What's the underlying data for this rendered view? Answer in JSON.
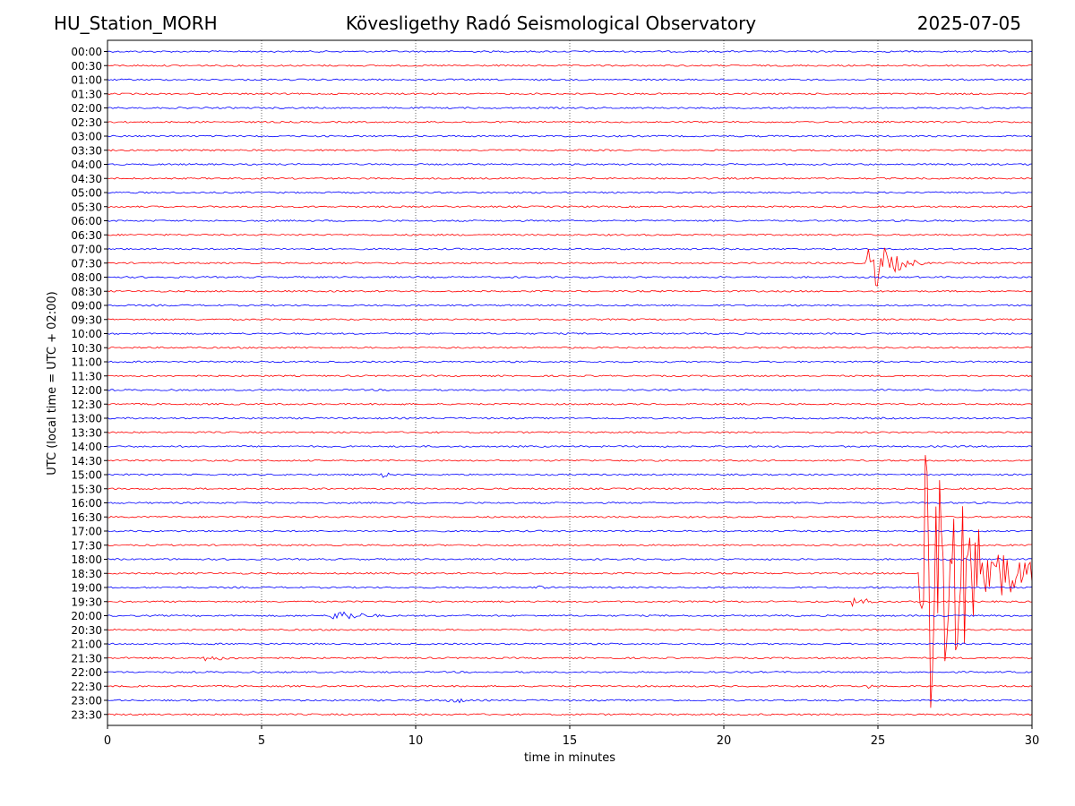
{
  "header": {
    "station": "HU_Station_MORH",
    "observatory": "Kövesligethy Radó Seismological Observatory",
    "date": "2025-07-05"
  },
  "chart_data": {
    "type": "line",
    "title": "Kövesligethy Radó Seismological Observatory",
    "xlabel": "time in minutes",
    "ylabel": "UTC (local time = UTC + 02:00)",
    "xlim": [
      0,
      30
    ],
    "xticks": [
      "0",
      "5",
      "10",
      "15",
      "20",
      "25",
      "30"
    ],
    "grid": "vertical dotted",
    "colors": {
      "even": "#0000ff",
      "odd": "#ff0000"
    },
    "rows": [
      "00:00",
      "00:30",
      "01:00",
      "01:30",
      "02:00",
      "02:30",
      "03:00",
      "03:30",
      "04:00",
      "04:30",
      "05:00",
      "05:30",
      "06:00",
      "06:30",
      "07:00",
      "07:30",
      "08:00",
      "08:30",
      "09:00",
      "09:30",
      "10:00",
      "10:30",
      "11:00",
      "11:30",
      "12:00",
      "12:30",
      "13:00",
      "13:30",
      "14:00",
      "14:30",
      "15:00",
      "15:30",
      "16:00",
      "16:30",
      "17:00",
      "17:30",
      "18:00",
      "18:30",
      "19:00",
      "19:30",
      "20:00",
      "20:30",
      "21:00",
      "21:30",
      "22:00",
      "22:30",
      "23:00",
      "23:30"
    ],
    "events": [
      {
        "row": "07:30",
        "start_min": 24.6,
        "end_min": 26.5,
        "amplitude": "large"
      },
      {
        "row": "18:30",
        "start_min": 26.3,
        "end_min": 30.0,
        "amplitude": "very large"
      },
      {
        "row": "19:30",
        "start_min": 24.1,
        "end_min": 25.5,
        "amplitude": "small"
      },
      {
        "row": "20:00",
        "start_min": 7.2,
        "end_min": 9.8,
        "amplitude": "small"
      },
      {
        "row": "19:00",
        "start_min": 13.9,
        "end_min": 14.6,
        "amplitude": "tiny"
      },
      {
        "row": "23:00",
        "start_min": 11.0,
        "end_min": 12.0,
        "amplitude": "small"
      },
      {
        "row": "15:00",
        "start_min": 8.8,
        "end_min": 9.9,
        "amplitude": "tiny"
      },
      {
        "row": "21:30",
        "start_min": 3.0,
        "end_min": 5.5,
        "amplitude": "tiny"
      },
      {
        "row": "22:30",
        "start_min": 24.6,
        "end_min": 25.3,
        "amplitude": "tiny"
      }
    ]
  }
}
